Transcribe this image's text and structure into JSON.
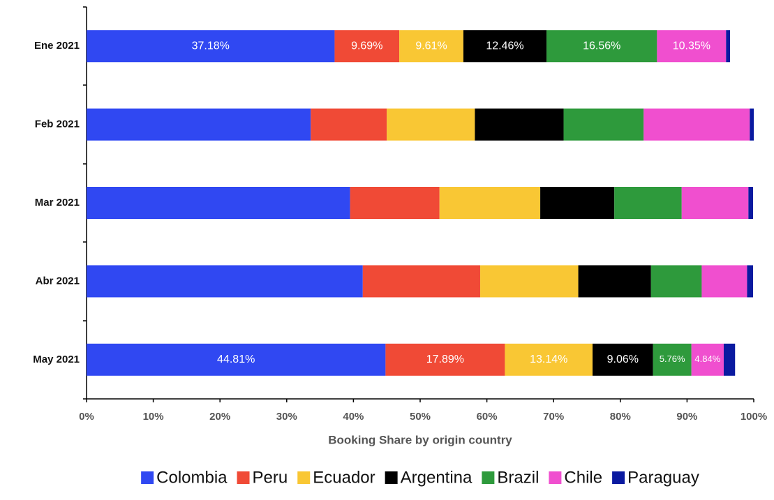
{
  "chart_data": {
    "type": "bar",
    "orientation": "horizontal",
    "stacked": true,
    "categories": [
      "Ene 2021",
      "Feb 2021",
      "Mar 2021",
      "Abr 2021",
      "May 2021"
    ],
    "xlabel": "Booking Share by origin country",
    "xlim": [
      0,
      100
    ],
    "xticks": [
      {
        "value": 0,
        "label": "0%"
      },
      {
        "value": 10,
        "label": "10%"
      },
      {
        "value": 20,
        "label": "20%"
      },
      {
        "value": 30,
        "label": "30%"
      },
      {
        "value": 40,
        "label": "40%"
      },
      {
        "value": 50,
        "label": "50%"
      },
      {
        "value": 60,
        "label": "60%"
      },
      {
        "value": 70,
        "label": "70%"
      },
      {
        "value": 80,
        "label": "80%"
      },
      {
        "value": 90,
        "label": "90%"
      },
      {
        "value": 100,
        "label": "100%"
      }
    ],
    "legend": "bottom",
    "series": [
      {
        "name": "Colombia",
        "color": "#3048f2",
        "values": [
          37.18,
          33.6,
          39.5,
          41.4,
          44.81
        ],
        "value_labels": [
          "37.18%",
          null,
          null,
          null,
          "44.81%"
        ]
      },
      {
        "name": "Peru",
        "color": "#f04a36",
        "values": [
          9.69,
          11.4,
          13.4,
          17.6,
          17.89
        ],
        "value_labels": [
          "9.69%",
          null,
          null,
          null,
          "17.89%"
        ]
      },
      {
        "name": "Ecuador",
        "color": "#f9c734",
        "values": [
          9.61,
          13.2,
          15.1,
          14.7,
          13.14
        ],
        "value_labels": [
          "9.61%",
          null,
          null,
          null,
          "13.14%"
        ]
      },
      {
        "name": "Argentina",
        "color": "#000000",
        "values": [
          12.46,
          13.3,
          11.1,
          10.9,
          9.06
        ],
        "value_labels": [
          "12.46%",
          null,
          null,
          null,
          "9.06%"
        ]
      },
      {
        "name": "Brazil",
        "color": "#2e9a3c",
        "values": [
          16.56,
          12.0,
          10.1,
          7.6,
          5.76
        ],
        "value_labels": [
          "16.56%",
          null,
          null,
          null,
          "5.76%"
        ]
      },
      {
        "name": "Chile",
        "color": "#f04fcf",
        "values": [
          10.35,
          15.9,
          10.0,
          6.8,
          4.84
        ],
        "value_labels": [
          "10.35%",
          null,
          null,
          null,
          "4.84%"
        ]
      },
      {
        "name": "Paraguay",
        "color": "#0a1aa0",
        "values": [
          0.6,
          0.6,
          0.7,
          0.9,
          1.7
        ],
        "value_labels": [
          null,
          null,
          null,
          null,
          null
        ]
      }
    ]
  }
}
